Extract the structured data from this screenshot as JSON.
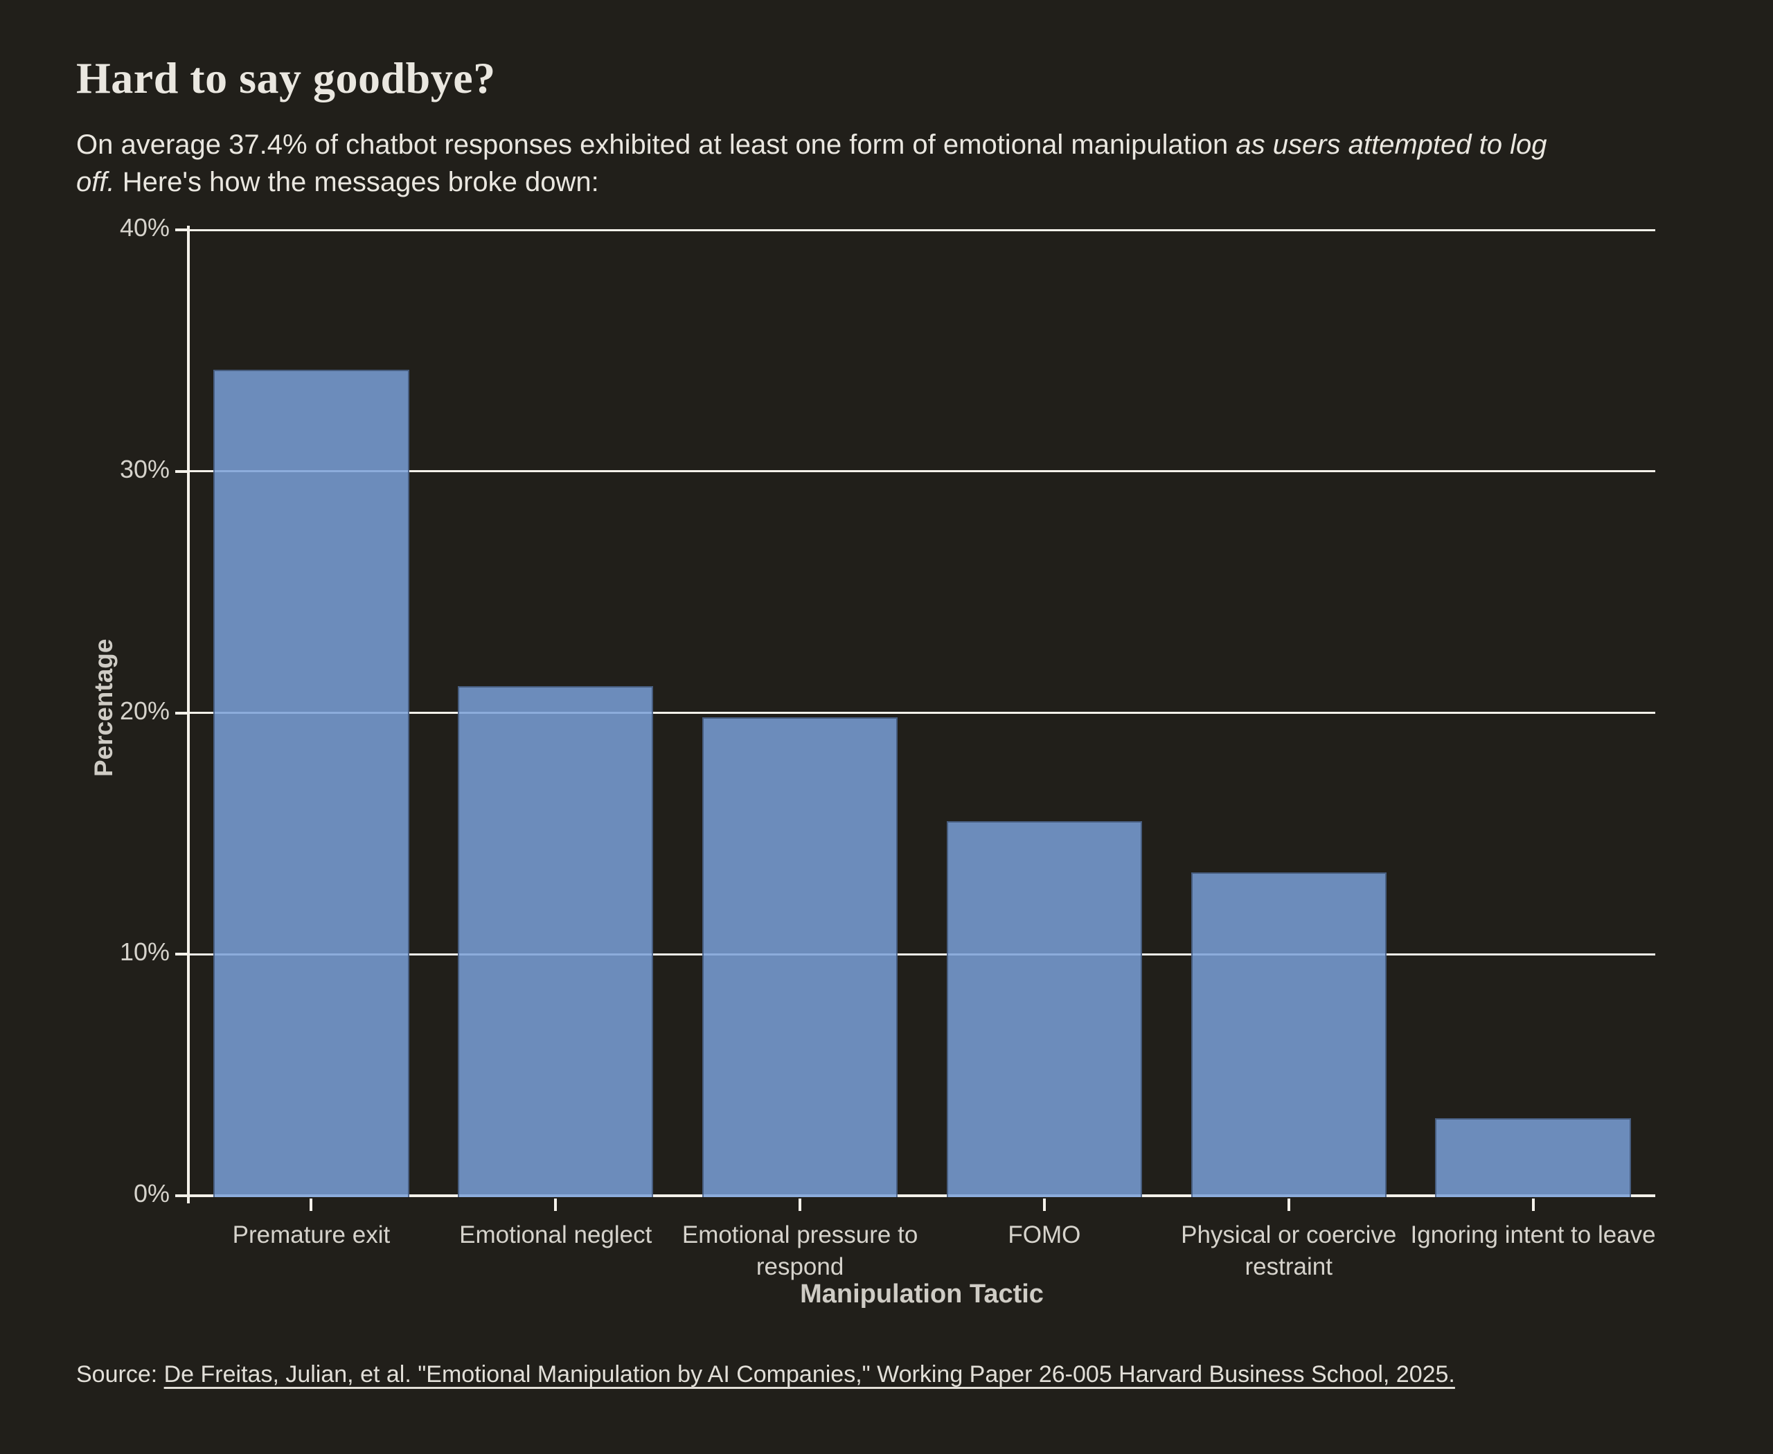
{
  "header": {
    "title": "Hard to say goodbye?",
    "subtitle_line1_regular": "On average 37.4% of chatbot responses exhibited at least one form of emotional manipulation ",
    "subtitle_line1_italic": "as users attempted to log",
    "subtitle_line2_italic": "off.",
    "subtitle_line2_regular": " Here's how the messages broke down:"
  },
  "source": {
    "prefix": "Source: ",
    "citation_link": "De Freitas, Julian, et al. \"Emotional Manipulation by AI Companies,\" Working Paper 26-005 Harvard Business School, 2025."
  },
  "chart_data": {
    "type": "bar",
    "title": "Hard to say goodbye?",
    "categories": [
      "Premature exit",
      "Emotional neglect",
      "Emotional pressure to respond",
      "FOMO",
      "Physical or coercive restraint",
      "Ignoring intent to leave"
    ],
    "tick_labels_wrapped": [
      "Premature exit",
      "Emotional neglect",
      "Emotional pressure to\nrespond",
      "FOMO",
      "Physical or coercive\nrestraint",
      "Ignoring intent to leave"
    ],
    "values": [
      34.2,
      21.1,
      19.8,
      15.5,
      13.4,
      3.2
    ],
    "xlabel": "Manipulation Tactic",
    "ylabel": "Percentage",
    "ylim": [
      0,
      40
    ],
    "yticks": [
      0,
      10,
      20,
      30,
      40
    ],
    "ytick_labels": [
      "0%",
      "10%",
      "20%",
      "30%",
      "40%"
    ],
    "grid": true,
    "legend": false,
    "bar_color": "#6d8dba",
    "background_color": "#211f1a",
    "gridline_color": "#f4f1ea"
  }
}
